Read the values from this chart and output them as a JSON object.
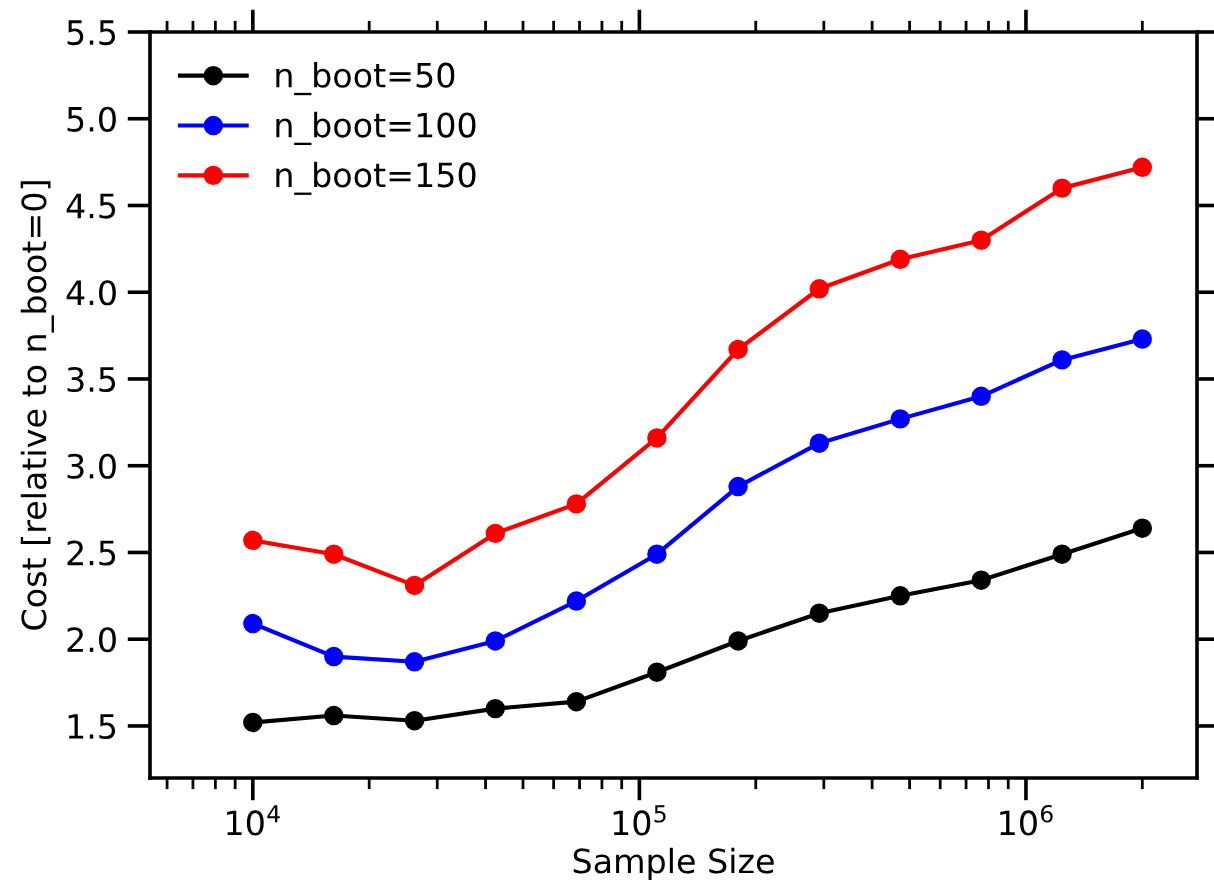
{
  "chart_data": {
    "type": "line",
    "xlabel": "Sample Size",
    "ylabel": "Cost [relative to n_boot=0]",
    "x": [
      10000,
      16200,
      26200,
      42400,
      68700,
      111000,
      180000,
      292000,
      473000,
      766000,
      1240000,
      2000000
    ],
    "series": [
      {
        "name": "n_boot=50",
        "color": "#000000",
        "values": [
          1.52,
          1.56,
          1.53,
          1.6,
          1.64,
          1.81,
          1.99,
          2.15,
          2.25,
          2.34,
          2.49,
          2.64
        ]
      },
      {
        "name": "n_boot=100",
        "color": "#0000ff",
        "values": [
          2.09,
          1.9,
          1.87,
          1.99,
          2.22,
          2.49,
          2.88,
          3.13,
          3.27,
          3.4,
          3.61,
          3.73
        ]
      },
      {
        "name": "n_boot=150",
        "color": "#ff0000",
        "values": [
          2.57,
          2.49,
          2.31,
          2.61,
          2.78,
          3.16,
          3.67,
          4.02,
          4.19,
          4.3,
          4.6,
          4.72
        ]
      }
    ],
    "log": "x",
    "xlim": [
      5420,
      2770000
    ],
    "ylim": [
      1.2,
      5.5
    ],
    "xticks": [
      {
        "value": 10000,
        "label": "10$^{4}$"
      },
      {
        "value": 100000,
        "label": "10$^{5}$"
      },
      {
        "value": 1000000,
        "label": "10$^{6}$"
      }
    ],
    "yticks": [
      1.5,
      {
        "value": 2,
        "label": "2.0"
      },
      2.5,
      {
        "value": 3,
        "label": "3.0"
      },
      3.5,
      {
        "value": 4,
        "label": "4.0"
      },
      4.5,
      {
        "value": 5,
        "label": "5.0"
      },
      5.5
    ],
    "marker": "circle",
    "line_style": "solid",
    "legend": "top left",
    "grid": false
  }
}
